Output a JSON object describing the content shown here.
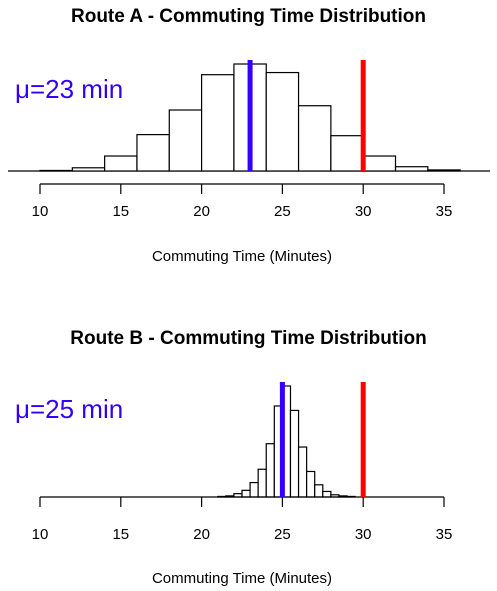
{
  "chart_data": [
    {
      "type": "histogram",
      "title": "Route A - Commuting Time Distribution",
      "xlabel": "Commuting Time (Minutes)",
      "ylabel": "",
      "xlim": [
        10,
        35
      ],
      "xticks": [
        10,
        15,
        20,
        25,
        30,
        35
      ],
      "bin_edges": [
        10,
        12,
        14,
        16,
        18,
        20,
        22,
        24,
        26,
        28,
        30,
        32,
        34,
        36
      ],
      "counts": [
        0.5,
        3,
        14,
        34,
        57,
        90,
        100,
        92,
        61,
        33,
        14,
        4,
        1
      ],
      "mean_label": "μ=23 min",
      "mean_line": {
        "x": 23,
        "color": "#3300ff"
      },
      "threshold_line": {
        "x": 30,
        "color": "#ff0000"
      }
    },
    {
      "type": "histogram",
      "title": "Route B - Commuting Time Distribution",
      "xlabel": "Commuting Time (Minutes)",
      "ylabel": "",
      "xlim": [
        10,
        35
      ],
      "xticks": [
        10,
        15,
        20,
        25,
        30,
        35
      ],
      "bin_edges": [
        21,
        21.5,
        22,
        22.5,
        23,
        23.5,
        24,
        24.5,
        25,
        25.5,
        26,
        26.5,
        27,
        27.5,
        28,
        28.5,
        29,
        29.5
      ],
      "counts": [
        0.5,
        1,
        3,
        6,
        13,
        25,
        48,
        82,
        100,
        78,
        45,
        23,
        11,
        5,
        2,
        1,
        0.5
      ],
      "mean_label": "μ=25 min",
      "mean_line": {
        "x": 25,
        "color": "#3300ff"
      },
      "threshold_line": {
        "x": 30,
        "color": "#ff0000"
      }
    }
  ]
}
